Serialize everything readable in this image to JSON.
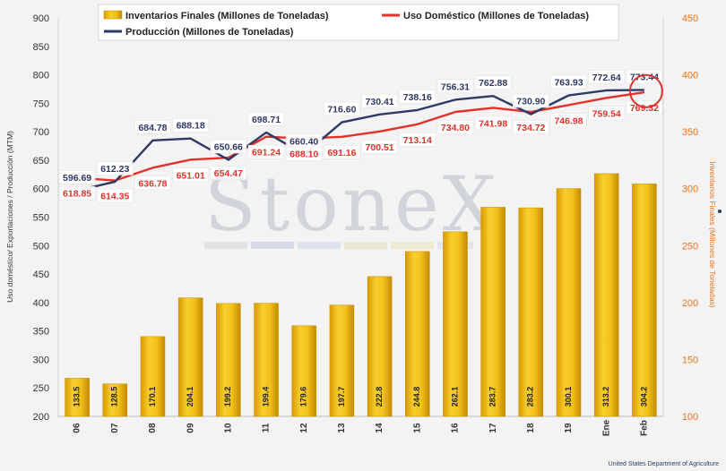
{
  "chart_data": {
    "type": "bar",
    "categories": [
      "06",
      "07",
      "08",
      "09",
      "10",
      "11",
      "12",
      "13",
      "14",
      "15",
      "16",
      "17",
      "18",
      "19",
      "Ene",
      "Feb"
    ],
    "series": [
      {
        "name": "Inventarios Finales (Millones de Toneladas)",
        "type": "bar",
        "axis": "right",
        "values": [
          133.5,
          128.5,
          170.1,
          204.1,
          199.2,
          199.4,
          179.6,
          197.7,
          222.8,
          244.8,
          262.1,
          283.7,
          283.2,
          300.1,
          313.2,
          304.2
        ]
      },
      {
        "name": "Uso Doméstico (Millones de Toneladas)",
        "type": "line",
        "axis": "left",
        "values": [
          618.85,
          614.35,
          636.78,
          651.01,
          654.47,
          691.24,
          688.1,
          691.16,
          700.51,
          713.14,
          734.8,
          741.98,
          734.72,
          746.98,
          759.54,
          769.32
        ]
      },
      {
        "name": "Producción (Millones de Toneladas)",
        "type": "line",
        "axis": "left",
        "values": [
          596.69,
          612.23,
          684.78,
          688.18,
          650.66,
          698.71,
          660.4,
          716.6,
          730.41,
          738.16,
          756.31,
          762.88,
          730.9,
          763.93,
          772.64,
          773.44
        ]
      }
    ],
    "y_left": {
      "label": "Uso doméstico/ Exportaciones / Producción (MTM)",
      "ticks": [
        200,
        250,
        300,
        350,
        400,
        450,
        500,
        550,
        600,
        650,
        700,
        750,
        800,
        850,
        900
      ],
      "range": [
        200,
        900
      ]
    },
    "y_right": {
      "label": "Inventarios Finales (Millones de Toneladas)",
      "ticks": [
        100,
        150,
        200,
        250,
        300,
        350,
        400,
        450
      ],
      "range": [
        100,
        450
      ]
    },
    "legend_position": "top"
  },
  "labels": {
    "bar": [
      "133.5",
      "128.5",
      "170.1",
      "204.1",
      "199.2",
      "199.4",
      "179.6",
      "197.7",
      "222.8",
      "244.8",
      "262.1",
      "283.7",
      "283.2",
      "300.1",
      "313.2",
      "304.2"
    ],
    "uso": [
      "618.85",
      "614.35",
      "636.78",
      "651.01",
      "654.47",
      "691.24",
      "688.10",
      "691.16",
      "700.51",
      "713.14",
      "734.80",
      "741.98",
      "734.72",
      "746.98",
      "759.54",
      "769.32"
    ],
    "prod": [
      "596.69",
      "612.23",
      "684.78",
      "688.18",
      "650.66",
      "698.71",
      "660.40",
      "716.60",
      "730.41",
      "738.16",
      "756.31",
      "762.88",
      "730.90",
      "763.93",
      "772.64",
      "773.44"
    ]
  },
  "legend": {
    "bars": "Inventarios Finales (Millones de Toneladas)",
    "uso": "Uso Doméstico (Millones de Toneladas)",
    "prod": "Producción (Millones de Toneladas)"
  },
  "watermark": "StoneX",
  "source": "United States Department of Agriculture",
  "colors": {
    "bar_top": "#f7cf2e",
    "bar_mid": "#e8a907",
    "bar_dark": "#b98200",
    "prod_line": "#2e3a66",
    "uso_line": "#e2322a",
    "right_axis": "#e8721c",
    "highlight_circle": "#e2322a"
  }
}
